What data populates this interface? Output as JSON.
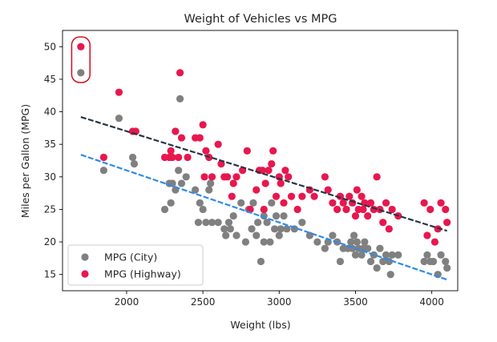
{
  "chart_data": {
    "type": "scatter",
    "title": "Weight of Vehicles vs MPG",
    "xlabel": "Weight (lbs)",
    "ylabel": "Miles per Gallon (MPG)",
    "xlim": [
      1580,
      4170
    ],
    "ylim": [
      12.5,
      52.5
    ],
    "xticks": [
      2000,
      2500,
      3000,
      3500,
      4000
    ],
    "yticks": [
      15,
      20,
      25,
      30,
      35,
      40,
      45,
      50
    ],
    "grid": false,
    "legend_position": "lower-left",
    "series": [
      {
        "name": "MPG (City)",
        "color": "#808080",
        "points": [
          [
            1700,
            46
          ],
          [
            1850,
            31
          ],
          [
            1950,
            39
          ],
          [
            2040,
            33
          ],
          [
            2050,
            32
          ],
          [
            2250,
            25
          ],
          [
            2280,
            29
          ],
          [
            2290,
            26
          ],
          [
            2300,
            29
          ],
          [
            2320,
            28
          ],
          [
            2340,
            31
          ],
          [
            2350,
            42
          ],
          [
            2360,
            29
          ],
          [
            2390,
            30
          ],
          [
            2450,
            28
          ],
          [
            2470,
            23
          ],
          [
            2480,
            26
          ],
          [
            2500,
            25
          ],
          [
            2520,
            23
          ],
          [
            2540,
            28
          ],
          [
            2550,
            29
          ],
          [
            2560,
            23
          ],
          [
            2600,
            23
          ],
          [
            2640,
            22
          ],
          [
            2650,
            21
          ],
          [
            2670,
            23
          ],
          [
            2680,
            22
          ],
          [
            2700,
            24
          ],
          [
            2720,
            21
          ],
          [
            2750,
            26
          ],
          [
            2780,
            20
          ],
          [
            2800,
            25
          ],
          [
            2820,
            22
          ],
          [
            2830,
            26
          ],
          [
            2850,
            21
          ],
          [
            2860,
            23
          ],
          [
            2880,
            17
          ],
          [
            2900,
            24
          ],
          [
            2900,
            20
          ],
          [
            2920,
            23
          ],
          [
            2940,
            20
          ],
          [
            2950,
            26
          ],
          [
            2970,
            22
          ],
          [
            2980,
            24
          ],
          [
            3000,
            21
          ],
          [
            3010,
            22
          ],
          [
            3030,
            24
          ],
          [
            3050,
            22
          ],
          [
            3100,
            22
          ],
          [
            3150,
            23
          ],
          [
            3200,
            21
          ],
          [
            3250,
            20
          ],
          [
            3300,
            19
          ],
          [
            3320,
            20
          ],
          [
            3350,
            21
          ],
          [
            3380,
            20
          ],
          [
            3400,
            17
          ],
          [
            3420,
            19
          ],
          [
            3450,
            19
          ],
          [
            3470,
            20
          ],
          [
            3480,
            19
          ],
          [
            3490,
            21
          ],
          [
            3500,
            18
          ],
          [
            3510,
            20
          ],
          [
            3520,
            19
          ],
          [
            3540,
            18
          ],
          [
            3550,
            19
          ],
          [
            3560,
            20
          ],
          [
            3580,
            19
          ],
          [
            3600,
            17
          ],
          [
            3620,
            18
          ],
          [
            3640,
            16
          ],
          [
            3660,
            19
          ],
          [
            3680,
            17
          ],
          [
            3700,
            18
          ],
          [
            3720,
            17
          ],
          [
            3730,
            15
          ],
          [
            3740,
            18
          ],
          [
            3780,
            18
          ],
          [
            3950,
            17
          ],
          [
            3970,
            18
          ],
          [
            3990,
            17
          ],
          [
            4010,
            17
          ],
          [
            4040,
            15
          ],
          [
            4060,
            18
          ],
          [
            4090,
            17
          ],
          [
            4100,
            16
          ]
        ]
      },
      {
        "name": "MPG (Highway)",
        "color": "#e8174e",
        "points": [
          [
            1700,
            50
          ],
          [
            1850,
            33
          ],
          [
            1950,
            43
          ],
          [
            2040,
            37
          ],
          [
            2060,
            37
          ],
          [
            2250,
            33
          ],
          [
            2280,
            33
          ],
          [
            2290,
            34
          ],
          [
            2300,
            33
          ],
          [
            2320,
            37
          ],
          [
            2340,
            33
          ],
          [
            2350,
            46
          ],
          [
            2360,
            36
          ],
          [
            2400,
            33
          ],
          [
            2450,
            36
          ],
          [
            2480,
            36
          ],
          [
            2500,
            38
          ],
          [
            2510,
            30
          ],
          [
            2520,
            34
          ],
          [
            2540,
            33
          ],
          [
            2560,
            30
          ],
          [
            2600,
            35
          ],
          [
            2620,
            32
          ],
          [
            2640,
            30
          ],
          [
            2660,
            30
          ],
          [
            2690,
            27
          ],
          [
            2700,
            29
          ],
          [
            2720,
            30
          ],
          [
            2760,
            31
          ],
          [
            2790,
            34
          ],
          [
            2810,
            25
          ],
          [
            2850,
            28
          ],
          [
            2870,
            31
          ],
          [
            2890,
            31
          ],
          [
            2900,
            25
          ],
          [
            2910,
            29
          ],
          [
            2930,
            31
          ],
          [
            2950,
            32
          ],
          [
            2960,
            34
          ],
          [
            2980,
            27
          ],
          [
            3000,
            30
          ],
          [
            3010,
            29
          ],
          [
            3030,
            26
          ],
          [
            3040,
            31
          ],
          [
            3060,
            30
          ],
          [
            3080,
            27
          ],
          [
            3120,
            25
          ],
          [
            3150,
            27
          ],
          [
            3200,
            28
          ],
          [
            3230,
            27
          ],
          [
            3300,
            30
          ],
          [
            3320,
            28
          ],
          [
            3350,
            26
          ],
          [
            3380,
            25
          ],
          [
            3400,
            27
          ],
          [
            3420,
            26
          ],
          [
            3440,
            25
          ],
          [
            3460,
            27
          ],
          [
            3480,
            26
          ],
          [
            3500,
            24
          ],
          [
            3510,
            28
          ],
          [
            3520,
            25
          ],
          [
            3540,
            27
          ],
          [
            3550,
            25
          ],
          [
            3560,
            26
          ],
          [
            3580,
            24
          ],
          [
            3600,
            26
          ],
          [
            3620,
            25
          ],
          [
            3640,
            30
          ],
          [
            3660,
            25
          ],
          [
            3680,
            23
          ],
          [
            3700,
            26
          ],
          [
            3720,
            22
          ],
          [
            3740,
            25
          ],
          [
            3780,
            24
          ],
          [
            3950,
            26
          ],
          [
            3970,
            21
          ],
          [
            3990,
            25
          ],
          [
            4020,
            20
          ],
          [
            4040,
            22
          ],
          [
            4060,
            26
          ],
          [
            4090,
            25
          ],
          [
            4100,
            23
          ]
        ]
      }
    ],
    "trend_lines": [
      {
        "series": "MPG (City)",
        "color": "#2e8bea",
        "x": [
          1700,
          4100
        ],
        "y": [
          33.4,
          14.2
        ]
      },
      {
        "series": "MPG (Highway)",
        "color": "#253545",
        "x": [
          1700,
          4100
        ],
        "y": [
          39.2,
          21.7
        ]
      }
    ],
    "annotation_highlight": {
      "color": "#d0101e",
      "x_range": [
        1640,
        1760
      ],
      "y_range": [
        44.5,
        51.5
      ]
    }
  }
}
